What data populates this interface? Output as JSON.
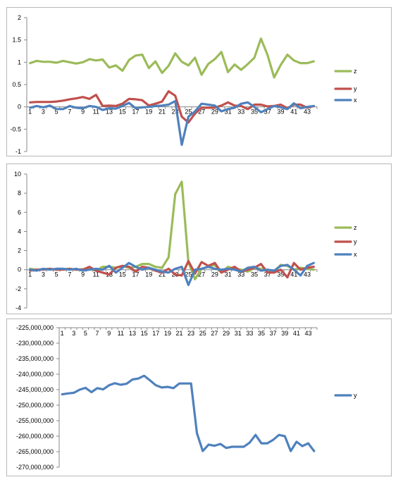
{
  "chart_data": [
    {
      "type": "line",
      "x": [
        1,
        2,
        3,
        4,
        5,
        6,
        7,
        8,
        9,
        10,
        11,
        12,
        13,
        14,
        15,
        16,
        17,
        18,
        19,
        20,
        21,
        22,
        23,
        24,
        25,
        26,
        27,
        28,
        29,
        30,
        31,
        32,
        33,
        34,
        35,
        36,
        37,
        38,
        39,
        40,
        41,
        42,
        43,
        44
      ],
      "x_tick_labels": [
        "1",
        "3",
        "5",
        "7",
        "9",
        "11",
        "13",
        "15",
        "17",
        "19",
        "21",
        "23",
        "25",
        "27",
        "29",
        "31",
        "33",
        "35",
        "37",
        "39",
        "41",
        "43"
      ],
      "ylim": [
        -1,
        2
      ],
      "y_ticks": [
        2,
        1.5,
        1,
        0.5,
        0,
        -0.5,
        -1
      ],
      "y_tick_labels": [
        "2",
        "1.5",
        "1",
        "0.5",
        "0",
        "-0.5",
        "-1"
      ],
      "legend_position": "right",
      "series": [
        {
          "name": "z",
          "color": "#9bbb59",
          "values": [
            0.98,
            1.03,
            1.01,
            1.01,
            0.99,
            1.03,
            1.0,
            0.97,
            1.0,
            1.07,
            1.04,
            1.06,
            0.88,
            0.93,
            0.81,
            1.05,
            1.15,
            1.17,
            0.87,
            1.02,
            0.76,
            0.92,
            1.2,
            1.01,
            0.93,
            1.1,
            0.72,
            0.96,
            1.07,
            1.23,
            0.78,
            0.95,
            0.83,
            0.96,
            1.1,
            1.53,
            1.16,
            0.66,
            0.94,
            1.17,
            1.04,
            0.98,
            0.98,
            1.02
          ]
        },
        {
          "name": "y",
          "color": "#c0504d",
          "values": [
            0.1,
            0.11,
            0.11,
            0.11,
            0.12,
            0.14,
            0.17,
            0.19,
            0.22,
            0.18,
            0.27,
            0.02,
            0.03,
            0.02,
            0.07,
            0.18,
            0.17,
            0.15,
            0.03,
            0.07,
            0.12,
            0.35,
            0.25,
            -0.22,
            -0.35,
            -0.15,
            -0.02,
            -0.02,
            -0.02,
            0.03,
            0.1,
            0.03,
            0.02,
            -0.05,
            0.05,
            0.05,
            0.01,
            0.02,
            0.05,
            -0.03,
            0.05,
            0.05,
            -0.02,
            0.02
          ]
        },
        {
          "name": "x",
          "color": "#4f81bd",
          "values": [
            -0.02,
            0.02,
            -0.01,
            0.03,
            -0.05,
            -0.05,
            0.02,
            -0.02,
            -0.03,
            0.02,
            0.0,
            -0.07,
            -0.03,
            -0.04,
            0.02,
            0.09,
            -0.03,
            -0.01,
            0.0,
            0.02,
            0.03,
            0.05,
            0.13,
            -0.85,
            -0.22,
            -0.1,
            0.07,
            0.05,
            0.03,
            -0.1,
            -0.05,
            -0.02,
            0.07,
            0.1,
            0.0,
            -0.12,
            -0.05,
            0.02,
            -0.01,
            -0.05,
            0.08,
            -0.03,
            0.0,
            0.02
          ]
        }
      ]
    },
    {
      "type": "line",
      "x": [
        1,
        2,
        3,
        4,
        5,
        6,
        7,
        8,
        9,
        10,
        11,
        12,
        13,
        14,
        15,
        16,
        17,
        18,
        19,
        20,
        21,
        22,
        23,
        24,
        25,
        26,
        27,
        28,
        29,
        30,
        31,
        32,
        33,
        34,
        35,
        36,
        37,
        38,
        39,
        40,
        41,
        42,
        43,
        44
      ],
      "x_tick_labels": [
        "1",
        "3",
        "5",
        "7",
        "9",
        "11",
        "13",
        "15",
        "17",
        "19",
        "21",
        "23",
        "25",
        "27",
        "29",
        "31",
        "33",
        "35",
        "37",
        "39",
        "41",
        "43"
      ],
      "ylim": [
        -4,
        10
      ],
      "y_ticks": [
        10,
        8,
        6,
        4,
        2,
        0,
        -2,
        -4
      ],
      "y_tick_labels": [
        "10",
        "8",
        "6",
        "4",
        "2",
        "0",
        "-2",
        "-4"
      ],
      "legend_position": "right",
      "series": [
        {
          "name": "z",
          "color": "#9bbb59",
          "values": [
            0.1,
            0.0,
            0.05,
            0.1,
            0.0,
            0.05,
            0.1,
            0.0,
            0.05,
            0.1,
            -0.1,
            0.3,
            0.3,
            0.2,
            0.4,
            0.2,
            0.3,
            0.6,
            0.6,
            0.3,
            0.2,
            1.3,
            7.9,
            9.2,
            0.8,
            -1.0,
            0.1,
            0.3,
            0.5,
            -0.3,
            0.3,
            0.1,
            0.0,
            -0.2,
            0.2,
            0.1,
            -0.1,
            -0.2,
            0.5,
            0.4,
            0.0,
            0.2,
            0.1,
            0.0
          ]
        },
        {
          "name": "y",
          "color": "#c0504d",
          "values": [
            -0.1,
            0.0,
            0.0,
            0.1,
            0.0,
            0.0,
            0.1,
            0.0,
            0.0,
            0.3,
            -0.1,
            -0.3,
            -0.5,
            0.2,
            0.4,
            0.3,
            -0.2,
            0.3,
            0.2,
            -0.1,
            -0.3,
            0.1,
            -0.5,
            -0.6,
            0.9,
            -0.4,
            0.8,
            0.4,
            0.7,
            -0.3,
            0.0,
            0.3,
            -0.2,
            0.0,
            0.2,
            0.6,
            -0.3,
            -0.3,
            0.0,
            -0.8,
            0.7,
            0.0,
            0.2,
            0.3
          ]
        },
        {
          "name": "x",
          "color": "#4f81bd",
          "values": [
            0.0,
            -0.1,
            0.1,
            0.0,
            0.1,
            0.1,
            0.0,
            0.1,
            -0.1,
            0.0,
            0.1,
            0.0,
            0.4,
            -0.3,
            0.2,
            0.7,
            0.3,
            0.0,
            0.2,
            0.0,
            -0.2,
            -0.3,
            0.1,
            0.3,
            -1.6,
            0.0,
            0.1,
            0.3,
            0.1,
            0.0,
            0.1,
            0.0,
            -0.2,
            0.2,
            0.3,
            -0.1,
            0.0,
            -0.1,
            0.4,
            0.5,
            0.0,
            -0.6,
            0.4,
            0.7
          ]
        }
      ]
    },
    {
      "type": "line",
      "x": [
        1,
        2,
        3,
        4,
        5,
        6,
        7,
        8,
        9,
        10,
        11,
        12,
        13,
        14,
        15,
        16,
        17,
        18,
        19,
        20,
        21,
        22,
        23,
        24,
        25,
        26,
        27,
        28,
        29,
        30,
        31,
        32,
        33,
        34,
        35,
        36,
        37,
        38,
        39,
        40,
        41,
        42,
        43,
        44
      ],
      "x_tick_labels": [
        "1",
        "3",
        "5",
        "7",
        "9",
        "11",
        "13",
        "15",
        "17",
        "19",
        "21",
        "23",
        "25",
        "27",
        "29",
        "31",
        "33",
        "35",
        "37",
        "39",
        "41",
        "43"
      ],
      "ylim": [
        -270000000,
        -225000000
      ],
      "y_ticks": [
        -225000000,
        -230000000,
        -235000000,
        -240000000,
        -245000000,
        -250000000,
        -255000000,
        -260000000,
        -265000000,
        -270000000
      ],
      "y_tick_labels": [
        "-225,000,000",
        "-230,000,000",
        "-235,000,000",
        "-240,000,000",
        "-245,000,000",
        "-250,000,000",
        "-255,000,000",
        "-260,000,000",
        "-265,000,000",
        "-270,000,000"
      ],
      "legend_position": "right",
      "series": [
        {
          "name": "y",
          "color": "#4f81bd",
          "values": [
            -246500000,
            -246200000,
            -246000000,
            -245000000,
            -244400000,
            -245800000,
            -244500000,
            -244900000,
            -243600000,
            -242900000,
            -243400000,
            -243100000,
            -241700000,
            -241400000,
            -240500000,
            -242000000,
            -243600000,
            -244300000,
            -244100000,
            -244500000,
            -243000000,
            -243000000,
            -243000000,
            -259000000,
            -264800000,
            -262700000,
            -263100000,
            -262500000,
            -263800000,
            -263400000,
            -263400000,
            -263400000,
            -262100000,
            -259600000,
            -262300000,
            -262300000,
            -261200000,
            -259600000,
            -260000000,
            -264800000,
            -261800000,
            -263200000,
            -262300000,
            -264800000
          ]
        }
      ]
    }
  ]
}
